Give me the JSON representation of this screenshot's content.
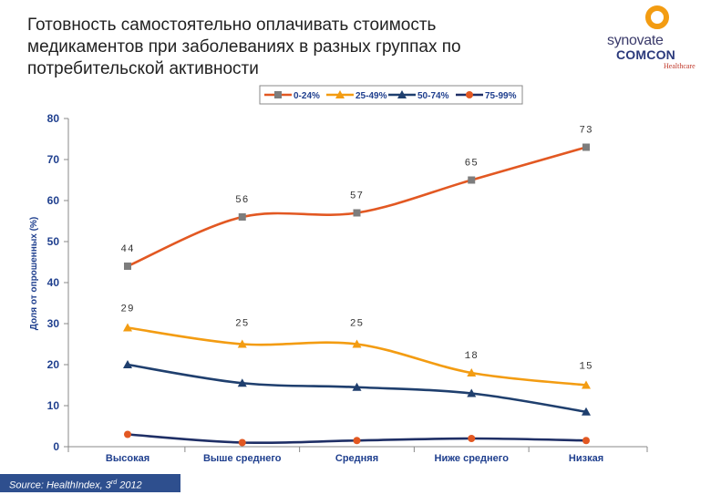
{
  "title_lines": [
    "Готовность самостоятельно оплачивать стоимость",
    "медикаментов при заболеваниях в разных группах по",
    "потребительской активности"
  ],
  "logo": {
    "top": "synovate",
    "bottom": "COMCON",
    "sub": "Healthcare"
  },
  "source": {
    "prefix": "Source: HealthIndex, 3",
    "sup": "rd",
    "suffix": "2012"
  },
  "chart_data": {
    "type": "line",
    "title": "",
    "xlabel": "",
    "ylabel": "Доля от опрошенных (%)",
    "ylim": [
      0,
      80
    ],
    "yticks": [
      "0",
      "10",
      "20",
      "30",
      "40",
      "50",
      "60",
      "70",
      "80"
    ],
    "categories": [
      "Высокая",
      "Выше среднего",
      "Средняя",
      "Ниже среднего",
      "Низкая"
    ],
    "legend_position": "top",
    "series": [
      {
        "name": "0-24%",
        "color": "#e25822",
        "marker": "square",
        "values": [
          44,
          56,
          57,
          65,
          73
        ],
        "labels": [
          "44",
          "56",
          "57",
          "65",
          "73"
        ]
      },
      {
        "name": "25-49%",
        "color": "#f39c12",
        "marker": "triangle",
        "values": [
          29,
          25,
          25,
          18,
          15
        ],
        "labels": [
          "29",
          "25",
          "25",
          "18",
          "15"
        ]
      },
      {
        "name": "50-74%",
        "color": "#1f3f6e",
        "marker": "triangle",
        "values": [
          20,
          15.5,
          14.5,
          13,
          8.5
        ],
        "labels": []
      },
      {
        "name": "75-99%",
        "color": "#1f2f66",
        "marker": "circle",
        "values": [
          3,
          1,
          1.5,
          2,
          1.5
        ],
        "labels": []
      }
    ]
  }
}
